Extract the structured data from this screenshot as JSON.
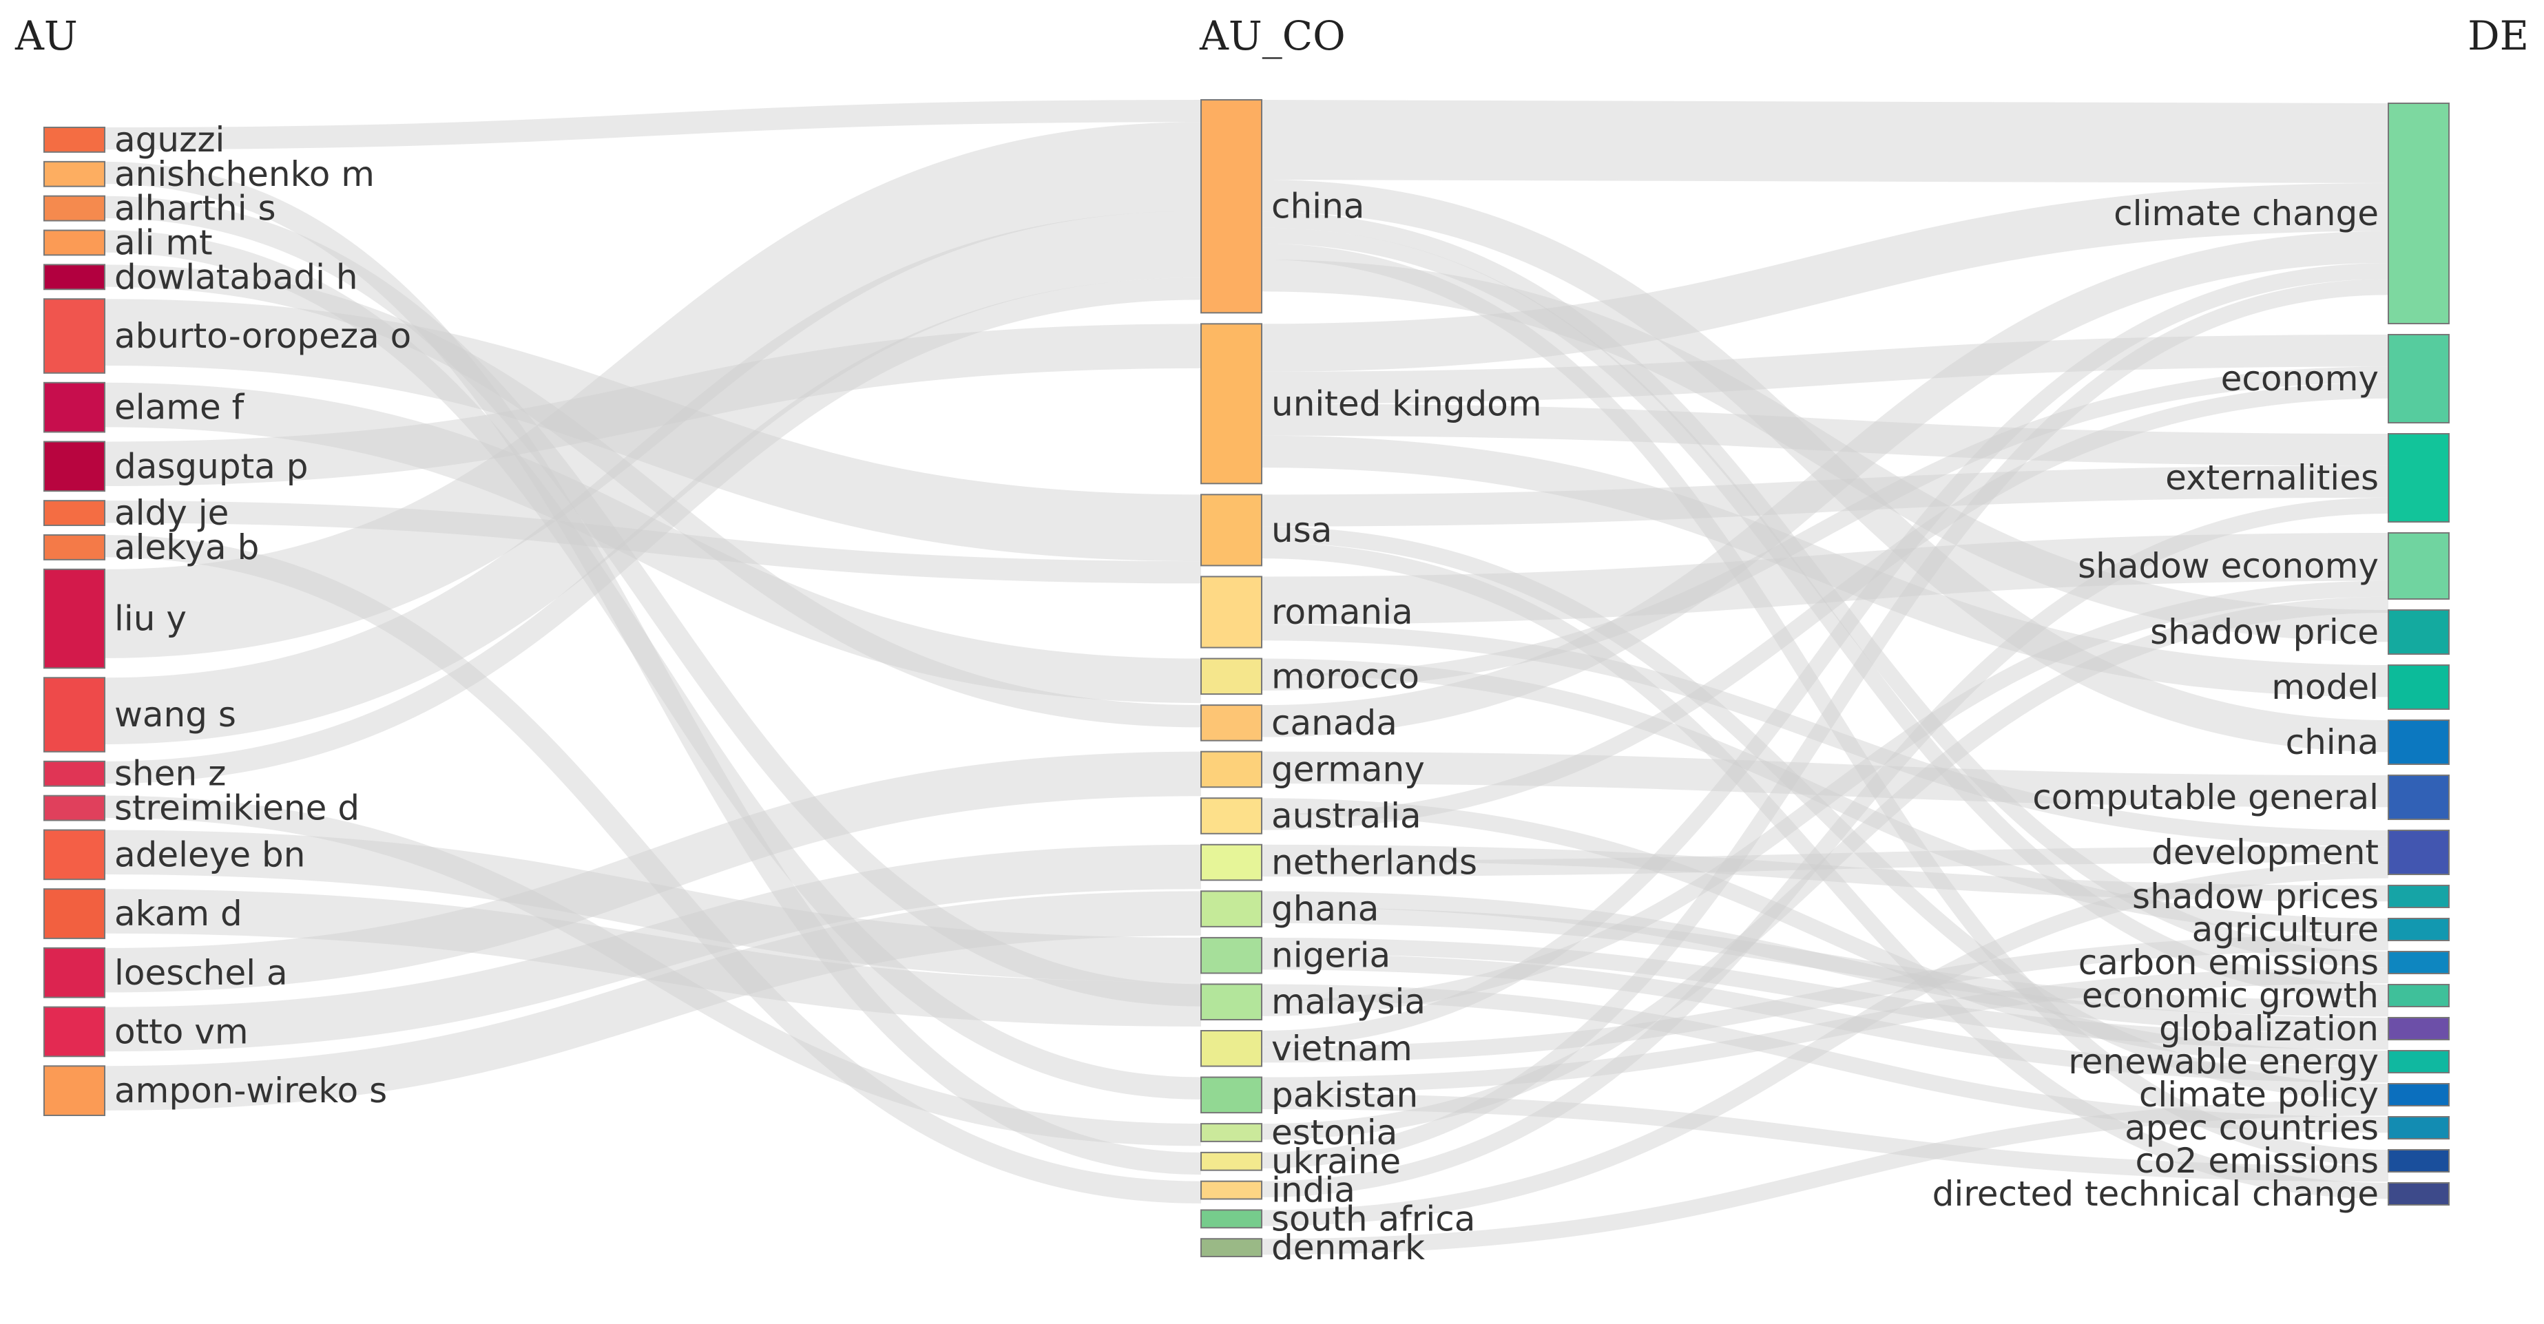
{
  "columns": [
    {
      "id": "AU",
      "title": "AU"
    },
    {
      "id": "AU_CO",
      "title": "AU_CO"
    },
    {
      "id": "DE",
      "title": "DE"
    }
  ],
  "nodes": {
    "AU": [
      {
        "label": "aguzzi",
        "color": "#f46d43",
        "value": 1
      },
      {
        "label": "anishchenko m",
        "color": "#fdae61",
        "value": 1
      },
      {
        "label": "alharthi s",
        "color": "#f58a4e",
        "value": 1
      },
      {
        "label": "ali mt",
        "color": "#fb9b55",
        "value": 1
      },
      {
        "label": "dowlatabadi h",
        "color": "#b2003f",
        "value": 1
      },
      {
        "label": "aburto-oropeza o",
        "color": "#f0554e",
        "value": 3
      },
      {
        "label": "elame f",
        "color": "#c70e4d",
        "value": 2
      },
      {
        "label": "dasgupta p",
        "color": "#b8053f",
        "value": 2
      },
      {
        "label": "aldy je",
        "color": "#f46d43",
        "value": 1
      },
      {
        "label": "alekya b",
        "color": "#f47a48",
        "value": 1
      },
      {
        "label": "liu y",
        "color": "#d31a4b",
        "value": 4
      },
      {
        "label": "wang s",
        "color": "#ee4a4a",
        "value": 3
      },
      {
        "label": "shen z",
        "color": "#e03555",
        "value": 1
      },
      {
        "label": "streimikiene d",
        "color": "#e0405c",
        "value": 1
      },
      {
        "label": "adeleye bn",
        "color": "#f45f46",
        "value": 2
      },
      {
        "label": "akam d",
        "color": "#f26040",
        "value": 2
      },
      {
        "label": "loeschel a",
        "color": "#dc2450",
        "value": 2
      },
      {
        "label": "otto vm",
        "color": "#e32a52",
        "value": 2
      },
      {
        "label": "ampon-wireko s",
        "color": "#fb9b55",
        "value": 2
      }
    ],
    "AU_CO": [
      {
        "label": "china",
        "color": "#fdae61",
        "value": 12
      },
      {
        "label": "united kingdom",
        "color": "#fdb863",
        "value": 9
      },
      {
        "label": "usa",
        "color": "#fdc06a",
        "value": 4
      },
      {
        "label": "romania",
        "color": "#fed985",
        "value": 4
      },
      {
        "label": "morocco",
        "color": "#f5e68c",
        "value": 2
      },
      {
        "label": "canada",
        "color": "#fdc574",
        "value": 2
      },
      {
        "label": "germany",
        "color": "#fdd17a",
        "value": 2
      },
      {
        "label": "australia",
        "color": "#fde08a",
        "value": 2
      },
      {
        "label": "netherlands",
        "color": "#e6f598",
        "value": 2
      },
      {
        "label": "ghana",
        "color": "#c5ea99",
        "value": 2
      },
      {
        "label": "nigeria",
        "color": "#a6df9a",
        "value": 2
      },
      {
        "label": "malaysia",
        "color": "#b3e59b",
        "value": 2
      },
      {
        "label": "vietnam",
        "color": "#ebed8f",
        "value": 2
      },
      {
        "label": "pakistan",
        "color": "#92d893",
        "value": 2
      },
      {
        "label": "estonia",
        "color": "#cbe99b",
        "value": 1
      },
      {
        "label": "ukraine",
        "color": "#f3e98e",
        "value": 1
      },
      {
        "label": "india",
        "color": "#fdd584",
        "value": 1
      },
      {
        "label": "south africa",
        "color": "#76cc8c",
        "value": 1
      },
      {
        "label": "denmark",
        "color": "#9ab986",
        "value": 1
      }
    ],
    "DE": [
      {
        "label": "climate change",
        "color": "#7dd8a0",
        "value": 10
      },
      {
        "label": "economy",
        "color": "#56cc9e",
        "value": 4
      },
      {
        "label": "externalities",
        "color": "#12c49a",
        "value": 4
      },
      {
        "label": "shadow economy",
        "color": "#70d4a0",
        "value": 3
      },
      {
        "label": "shadow price",
        "color": "#14aa9f",
        "value": 2
      },
      {
        "label": "model",
        "color": "#0cbb9a",
        "value": 2
      },
      {
        "label": "china",
        "color": "#0c78c0",
        "value": 2
      },
      {
        "label": "computable general",
        "color": "#3161b6",
        "value": 2
      },
      {
        "label": "development",
        "color": "#4256b0",
        "value": 2
      },
      {
        "label": "shadow prices",
        "color": "#16a4a6",
        "value": 1
      },
      {
        "label": "agriculture",
        "color": "#1298b0",
        "value": 1
      },
      {
        "label": "carbon emissions",
        "color": "#0e86c0",
        "value": 1
      },
      {
        "label": "economic growth",
        "color": "#3fc09a",
        "value": 1
      },
      {
        "label": "globalization",
        "color": "#6c4fa8",
        "value": 1
      },
      {
        "label": "renewable energy",
        "color": "#10b8a0",
        "value": 1
      },
      {
        "label": "climate policy",
        "color": "#0b6fbe",
        "value": 1
      },
      {
        "label": "apec countries",
        "color": "#138cb2",
        "value": 1
      },
      {
        "label": "co2 emissions",
        "color": "#1a4f9c",
        "value": 1
      },
      {
        "label": "directed technical change",
        "color": "#3d4a8a",
        "value": 1
      }
    ]
  },
  "links": [
    {
      "from": "aguzzi",
      "to": "china",
      "value": 1
    },
    {
      "from": "anishchenko m",
      "to": "ukraine",
      "value": 1
    },
    {
      "from": "alharthi s",
      "to": "malaysia",
      "value": 1
    },
    {
      "from": "ali mt",
      "to": "pakistan",
      "value": 1
    },
    {
      "from": "dowlatabadi h",
      "to": "canada",
      "value": 1
    },
    {
      "from": "aburto-oropeza o",
      "to": "usa",
      "value": 3
    },
    {
      "from": "elame f",
      "to": "morocco",
      "value": 2
    },
    {
      "from": "dasgupta p",
      "to": "united kingdom",
      "value": 2
    },
    {
      "from": "aldy je",
      "to": "usa",
      "value": 1
    },
    {
      "from": "alekya b",
      "to": "india",
      "value": 1
    },
    {
      "from": "liu y",
      "to": "china",
      "value": 4
    },
    {
      "from": "wang s",
      "to": "china",
      "value": 3
    },
    {
      "from": "shen z",
      "to": "china",
      "value": 1
    },
    {
      "from": "streimikiene d",
      "to": "estonia",
      "value": 1
    },
    {
      "from": "adeleye bn",
      "to": "nigeria",
      "value": 2
    },
    {
      "from": "akam d",
      "to": "nigeria",
      "value": 2
    },
    {
      "from": "loeschel a",
      "to": "germany",
      "value": 2
    },
    {
      "from": "otto vm",
      "to": "netherlands",
      "value": 2
    },
    {
      "from": "ampon-wireko s",
      "to": "ghana",
      "value": 2
    },
    {
      "from": "china",
      "to": "climate change",
      "value": 5
    },
    {
      "from": "china",
      "to": "china",
      "value": 2
    },
    {
      "from": "china",
      "to": "carbon emissions",
      "value": 1
    },
    {
      "from": "china",
      "to": "economic growth",
      "value": 1
    },
    {
      "from": "china",
      "to": "co2 emissions",
      "value": 1
    },
    {
      "from": "china",
      "to": "shadow price",
      "value": 2
    },
    {
      "from": "united kingdom",
      "to": "climate change",
      "value": 3
    },
    {
      "from": "united kingdom",
      "to": "economy",
      "value": 2
    },
    {
      "from": "united kingdom",
      "to": "externalities",
      "value": 2
    },
    {
      "from": "united kingdom",
      "to": "model",
      "value": 2
    },
    {
      "from": "usa",
      "to": "externalities",
      "value": 2
    },
    {
      "from": "usa",
      "to": "climate policy",
      "value": 1
    },
    {
      "from": "usa",
      "to": "directed technical change",
      "value": 1
    },
    {
      "from": "romania",
      "to": "shadow economy",
      "value": 3
    },
    {
      "from": "romania",
      "to": "development",
      "value": 1
    },
    {
      "from": "morocco",
      "to": "agriculture",
      "value": 1
    },
    {
      "from": "morocco",
      "to": "economy",
      "value": 1
    },
    {
      "from": "canada",
      "to": "climate change",
      "value": 2
    },
    {
      "from": "germany",
      "to": "computable general",
      "value": 2
    },
    {
      "from": "australia",
      "to": "renewable energy",
      "value": 1
    },
    {
      "from": "australia",
      "to": "economy",
      "value": 1
    },
    {
      "from": "netherlands",
      "to": "shadow prices",
      "value": 1
    },
    {
      "from": "netherlands",
      "to": "development",
      "value": 1
    },
    {
      "from": "ghana",
      "to": "globalization",
      "value": 1
    },
    {
      "from": "ghana",
      "to": "economic growth",
      "value": 1
    },
    {
      "from": "nigeria",
      "to": "globalization",
      "value": 1
    },
    {
      "from": "nigeria",
      "to": "renewable energy",
      "value": 1
    },
    {
      "from": "malaysia",
      "to": "apec countries",
      "value": 1
    },
    {
      "from": "malaysia",
      "to": "shadow economy",
      "value": 1
    },
    {
      "from": "vietnam",
      "to": "climate change",
      "value": 1
    },
    {
      "from": "vietnam",
      "to": "agriculture",
      "value": 1
    },
    {
      "from": "pakistan",
      "to": "carbon emissions",
      "value": 1
    },
    {
      "from": "pakistan",
      "to": "co2 emissions",
      "value": 1
    },
    {
      "from": "estonia",
      "to": "shadow economy",
      "value": 1
    },
    {
      "from": "ukraine",
      "to": "climate change",
      "value": 1
    },
    {
      "from": "india",
      "to": "externalities",
      "value": 1
    },
    {
      "from": "south africa",
      "to": "development",
      "value": 1
    },
    {
      "from": "denmark",
      "to": "climate policy",
      "value": 1
    }
  ]
}
